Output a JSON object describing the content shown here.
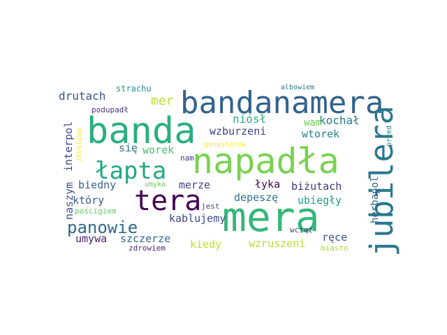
{
  "word_cloud": {
    "words": [
      {
        "text": "bandanamera",
        "color": "#33638d"
      },
      {
        "text": "banda",
        "color": "#29af7f"
      },
      {
        "text": "napadła",
        "color": "#7ad151"
      },
      {
        "text": "mera",
        "color": "#35b779"
      },
      {
        "text": "jubilera",
        "color": "#2a788e"
      },
      {
        "text": "tera",
        "color": "#440154"
      },
      {
        "text": "łapta",
        "color": "#22a884"
      },
      {
        "text": "panowie",
        "color": "#31688e"
      },
      {
        "text": "mer",
        "color": "#bddf26"
      },
      {
        "text": "drutach",
        "color": "#3b528b"
      },
      {
        "text": "interpol",
        "color": "#3e4a89"
      },
      {
        "text": "wzburzeni",
        "color": "#414487"
      },
      {
        "text": "niósł",
        "color": "#2ab07f"
      },
      {
        "text": "kochał",
        "color": "#2a788e"
      },
      {
        "text": "wtorek",
        "color": "#25858e"
      },
      {
        "text": "wam",
        "color": "#6ece58"
      },
      {
        "text": "worek",
        "color": "#4ac16d"
      },
      {
        "text": "się",
        "color": "#2c728e"
      },
      {
        "text": "biedny",
        "color": "#33638d"
      },
      {
        "text": "merze",
        "color": "#404688"
      },
      {
        "text": "łyka",
        "color": "#440154"
      },
      {
        "text": "biżutach",
        "color": "#46327e"
      },
      {
        "text": "depeszę",
        "color": "#2c728e"
      },
      {
        "text": "ubiegły",
        "color": "#1f9e89"
      },
      {
        "text": "który",
        "color": "#365c8d"
      },
      {
        "text": "naszym",
        "color": "#3b528b"
      },
      {
        "text": "kablujemy",
        "color": "#3e4a89"
      },
      {
        "text": "umywa",
        "color": "#482475"
      },
      {
        "text": "szczerze",
        "color": "#33638d"
      },
      {
        "text": "kiedy",
        "color": "#c2df23"
      },
      {
        "text": "wzruszeni",
        "color": "#b5de2b"
      },
      {
        "text": "ręce",
        "color": "#3b528b"
      },
      {
        "text": "herbapol",
        "color": "#33638d"
      },
      {
        "text": "przed",
        "color": "#2a788e"
      },
      {
        "text": "gangsterów",
        "color": "#fde725"
      },
      {
        "text": "złośliwa",
        "color": "#fde725"
      },
      {
        "text": "strachu",
        "color": "#21918c"
      },
      {
        "text": "albowiem",
        "color": "#2a788e"
      },
      {
        "text": "podupadł",
        "color": "#472d7b"
      },
      {
        "text": "nam",
        "color": "#443983"
      },
      {
        "text": "umyka",
        "color": "#6ece58"
      },
      {
        "text": "jest",
        "color": "#3e4a89"
      },
      {
        "text": "pościgiem",
        "color": "#5ec962"
      },
      {
        "text": "wciąż",
        "color": "#433e85"
      },
      {
        "text": "zdrowiem",
        "color": "#482878"
      },
      {
        "text": "miasto",
        "color": "#a8db34"
      }
    ]
  }
}
